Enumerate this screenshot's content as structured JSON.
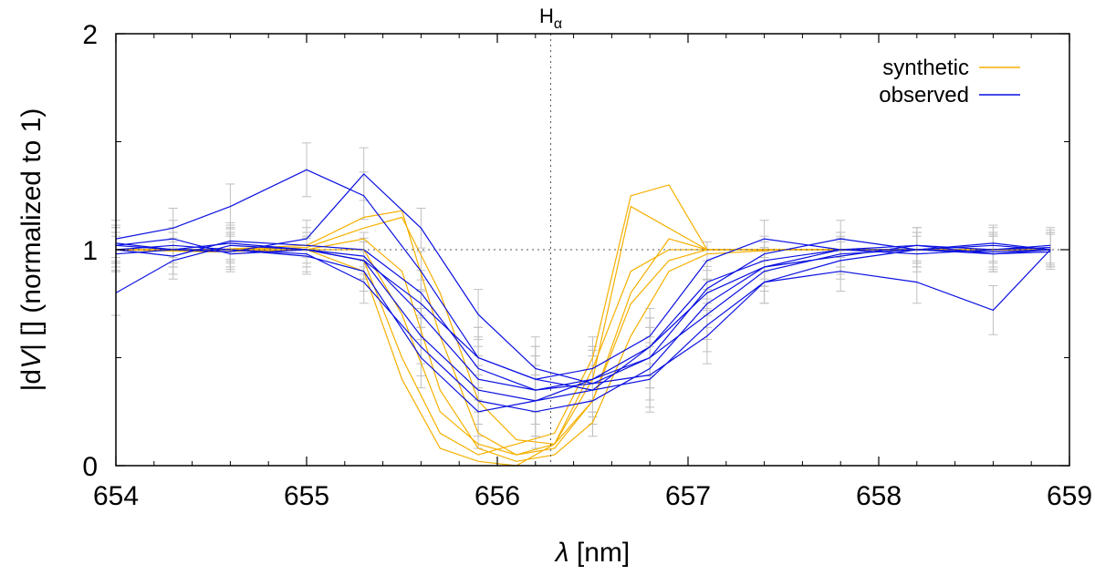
{
  "chart_data": {
    "type": "line",
    "title": "",
    "xlabel_symbol": "λ",
    "xlabel_unit": "[nm]",
    "ylabel_prefix": "|d",
    "ylabel_var": "V",
    "ylabel_suffix": "| [] (normalized to 1)",
    "xlim": [
      654,
      659
    ],
    "ylim": [
      0,
      2
    ],
    "x_ticks": [
      654,
      655,
      656,
      657,
      658,
      659
    ],
    "x_tick_labels": [
      "654",
      "655",
      "656",
      "657",
      "658",
      "659"
    ],
    "y_ticks": [
      0,
      1,
      2
    ],
    "y_tick_labels": [
      "0",
      "1",
      "2"
    ],
    "y_minor_ticks": [
      0.5,
      1.5
    ],
    "reference_line": {
      "label_main": "H",
      "label_sub": "α",
      "x": 656.28,
      "y": 1.0
    },
    "legend_position": "top-right",
    "series": [
      {
        "name": "synthetic",
        "color": "#f5b000",
        "profiles": [
          {
            "x": [
              654.0,
              654.5,
              655.0,
              655.3,
              655.5,
              655.7,
              655.9,
              656.1,
              656.3,
              656.5,
              656.7,
              656.9,
              657.1,
              657.5,
              658.0,
              658.9
            ],
            "y": [
              1.0,
              1.0,
              1.0,
              1.0,
              0.7,
              0.25,
              0.1,
              0.05,
              0.08,
              0.3,
              0.75,
              0.95,
              1.0,
              1.0,
              1.0,
              1.0
            ]
          },
          {
            "x": [
              654.0,
              654.5,
              655.0,
              655.3,
              655.5,
              655.7,
              655.9,
              656.1,
              656.3,
              656.5,
              656.7,
              656.9,
              657.1,
              657.5,
              658.0,
              658.9
            ],
            "y": [
              1.0,
              1.0,
              1.02,
              1.15,
              1.18,
              0.6,
              0.15,
              0.05,
              0.1,
              0.4,
              1.2,
              1.1,
              1.0,
              1.0,
              1.0,
              1.0
            ]
          },
          {
            "x": [
              654.0,
              654.5,
              655.0,
              655.3,
              655.5,
              655.7,
              655.9,
              656.1,
              656.3,
              656.5,
              656.7,
              656.9,
              657.1,
              657.5,
              658.0,
              658.9
            ],
            "y": [
              1.0,
              0.99,
              1.0,
              1.05,
              0.9,
              0.35,
              0.08,
              0.02,
              0.05,
              0.2,
              0.6,
              0.9,
              0.98,
              1.0,
              1.0,
              1.0
            ]
          },
          {
            "x": [
              654.0,
              654.5,
              655.0,
              655.3,
              655.5,
              655.7,
              655.9,
              656.1,
              656.3,
              656.5,
              656.7,
              656.9,
              657.1,
              657.5,
              658.0,
              658.9
            ],
            "y": [
              1.0,
              1.0,
              1.0,
              0.95,
              0.5,
              0.15,
              0.05,
              0.1,
              0.15,
              0.5,
              1.25,
              1.3,
              1.0,
              1.0,
              1.0,
              1.0
            ]
          },
          {
            "x": [
              654.0,
              654.5,
              655.0,
              655.3,
              655.5,
              655.7,
              655.9,
              656.1,
              656.3,
              656.5,
              656.7,
              656.9,
              657.1,
              657.5,
              658.0,
              658.9
            ],
            "y": [
              1.0,
              1.0,
              1.01,
              1.1,
              1.15,
              0.8,
              0.3,
              0.12,
              0.1,
              0.3,
              0.8,
              1.05,
              1.0,
              1.0,
              1.0,
              1.0
            ]
          },
          {
            "x": [
              654.0,
              654.5,
              655.0,
              655.3,
              655.5,
              655.7,
              655.9,
              656.1,
              656.3,
              656.5,
              656.7,
              656.9,
              657.1,
              657.5,
              658.0,
              658.9
            ],
            "y": [
              1.0,
              1.0,
              1.0,
              0.9,
              0.4,
              0.08,
              0.02,
              0.0,
              0.1,
              0.45,
              0.9,
              1.0,
              1.0,
              1.0,
              1.0,
              1.0
            ]
          }
        ]
      },
      {
        "name": "observed",
        "color": "#0a10e0",
        "error_bar_color": "#c0c0c0",
        "profiles": [
          {
            "x": [
              654.0,
              654.3,
              654.6,
              655.0,
              655.3,
              655.6,
              655.9,
              656.2,
              656.5,
              656.8,
              657.1,
              657.4,
              657.8,
              658.2,
              658.6,
              658.9
            ],
            "y": [
              1.02,
              1.05,
              0.98,
              1.0,
              0.95,
              0.6,
              0.35,
              0.3,
              0.35,
              0.55,
              0.85,
              0.95,
              1.0,
              1.02,
              0.98,
              1.0
            ]
          },
          {
            "x": [
              654.0,
              654.3,
              654.6,
              655.0,
              655.3,
              655.6,
              655.9,
              656.2,
              656.5,
              656.8,
              657.1,
              657.4,
              657.8,
              658.2,
              658.6,
              658.9
            ],
            "y": [
              1.0,
              0.97,
              1.04,
              1.02,
              1.0,
              0.8,
              0.45,
              0.35,
              0.4,
              0.5,
              0.7,
              0.9,
              0.98,
              1.0,
              1.03,
              1.0
            ]
          },
          {
            "x": [
              654.0,
              654.3,
              654.6,
              655.0,
              655.3,
              655.6,
              655.9,
              656.2,
              656.5,
              656.8,
              657.1,
              657.4,
              657.8,
              658.2,
              658.6,
              658.9
            ],
            "y": [
              1.05,
              1.1,
              1.2,
              1.37,
              1.25,
              0.9,
              0.5,
              0.4,
              0.45,
              0.6,
              0.95,
              1.05,
              1.0,
              0.98,
              1.0,
              1.02
            ]
          },
          {
            "x": [
              654.0,
              654.3,
              654.6,
              655.0,
              655.3,
              655.6,
              655.9,
              656.2,
              656.5,
              656.8,
              657.1,
              657.4,
              657.8,
              658.2,
              658.6,
              658.9
            ],
            "y": [
              0.98,
              1.0,
              1.0,
              0.97,
              0.9,
              0.5,
              0.25,
              0.3,
              0.4,
              0.55,
              0.8,
              0.92,
              1.0,
              1.0,
              0.98,
              0.99
            ]
          },
          {
            "x": [
              654.0,
              654.3,
              654.6,
              655.0,
              655.3,
              655.6,
              655.9,
              656.2,
              656.5,
              656.8,
              657.1,
              657.4,
              657.8,
              658.2,
              658.6,
              658.9
            ],
            "y": [
              1.03,
              1.0,
              0.99,
              1.05,
              1.35,
              1.1,
              0.7,
              0.45,
              0.38,
              0.42,
              0.6,
              0.85,
              0.95,
              1.0,
              1.02,
              1.0
            ]
          },
          {
            "x": [
              654.0,
              654.3,
              654.6,
              655.0,
              655.3,
              655.6,
              655.9,
              656.2,
              656.5,
              656.8,
              657.1,
              657.4,
              657.8,
              658.2,
              658.6,
              658.9
            ],
            "y": [
              1.0,
              1.02,
              1.0,
              0.98,
              0.85,
              0.55,
              0.3,
              0.25,
              0.3,
              0.45,
              0.75,
              0.92,
              0.97,
              1.02,
              1.0,
              1.01
            ]
          },
          {
            "x": [
              654.0,
              654.3,
              654.6,
              655.0,
              655.3,
              655.6,
              655.9,
              656.2,
              656.5,
              656.8,
              657.1,
              657.4,
              657.8,
              658.2,
              658.6,
              658.9
            ],
            "y": [
              0.8,
              0.95,
              1.02,
              1.0,
              0.95,
              0.75,
              0.5,
              0.4,
              0.35,
              0.4,
              0.65,
              0.85,
              0.9,
              0.85,
              0.72,
              1.0
            ]
          },
          {
            "x": [
              654.0,
              654.3,
              654.6,
              655.0,
              655.3,
              655.6,
              655.9,
              656.2,
              656.5,
              656.8,
              657.1,
              657.4,
              657.8,
              658.2,
              658.6,
              658.9
            ],
            "y": [
              1.02,
              1.0,
              1.03,
              1.0,
              0.97,
              0.7,
              0.4,
              0.35,
              0.38,
              0.5,
              0.82,
              0.98,
              1.05,
              1.0,
              0.99,
              1.0
            ]
          }
        ]
      }
    ]
  }
}
